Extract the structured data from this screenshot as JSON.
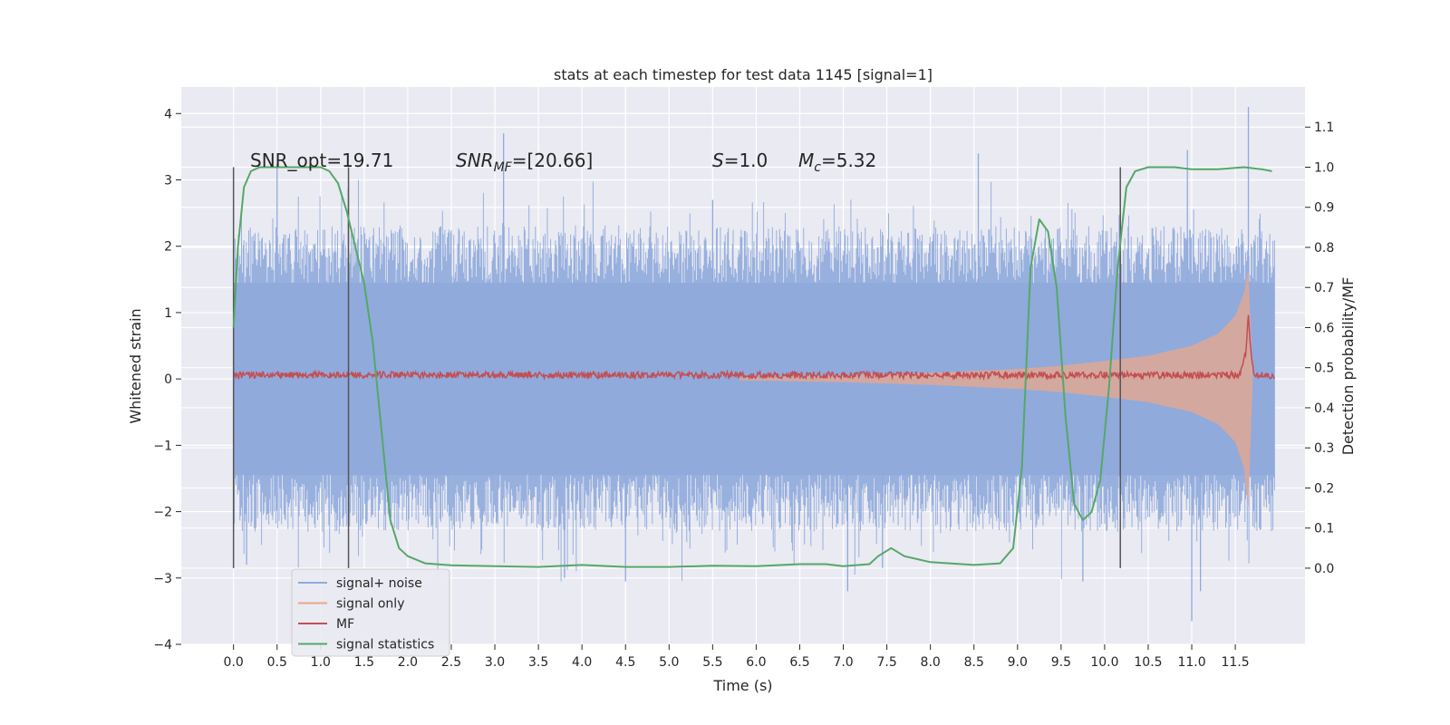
{
  "chart_data": {
    "type": "line",
    "title": "stats at each timestep for test data 1145 [signal=1]",
    "xlabel": "Time (s)",
    "ylabel": "Whitened strain",
    "ylabel_right": "Detection probability/MF",
    "xlim": [
      -0.6,
      12.3
    ],
    "ylim": [
      -4.0,
      4.4
    ],
    "ylim_right": [
      -0.19,
      1.2
    ],
    "x_ticks": [
      0.0,
      0.5,
      1.0,
      1.5,
      2.0,
      2.5,
      3.0,
      3.5,
      4.0,
      4.5,
      5.0,
      5.5,
      6.0,
      6.5,
      7.0,
      7.5,
      8.0,
      8.5,
      9.0,
      9.5,
      10.0,
      10.5,
      11.0,
      11.5
    ],
    "x_tick_labels": [
      "0.0",
      "0.5",
      "1.0",
      "1.5",
      "2.0",
      "2.5",
      "3.0",
      "3.5",
      "4.0",
      "4.5",
      "5.0",
      "5.5",
      "6.0",
      "6.5",
      "7.0",
      "7.5",
      "8.0",
      "8.5",
      "9.0",
      "9.5",
      "10.0",
      "10.5",
      "11.0",
      "11.5"
    ],
    "y_ticks": [
      -4,
      -3,
      -2,
      -1,
      0,
      1,
      2,
      3,
      4
    ],
    "y_tick_labels": [
      "−4",
      "−3",
      "−2",
      "−1",
      "0",
      "1",
      "2",
      "3",
      "4"
    ],
    "y_right_ticks": [
      0.0,
      0.1,
      0.2,
      0.3,
      0.4,
      0.5,
      0.6,
      0.7,
      0.8,
      0.9,
      1.0,
      1.1
    ],
    "y_right_tick_labels": [
      "0.0",
      "0.1",
      "0.2",
      "0.3",
      "0.4",
      "0.5",
      "0.6",
      "0.7",
      "0.8",
      "0.9",
      "1.0",
      "1.1"
    ],
    "grid": true,
    "legend_position": "bottom-left",
    "legend": [
      {
        "label": "signal+ noise",
        "color": "#8faadc"
      },
      {
        "label": "signal only",
        "color": "#eaa78b"
      },
      {
        "label": "MF",
        "color": "#c44e52"
      },
      {
        "label": "signal statistics",
        "color": "#55a868"
      }
    ],
    "annotations": {
      "snr_opt": "SNR_opt=19.71",
      "snr_mf_base": "SNR",
      "snr_mf_sub": "MF",
      "snr_mf_rest": "=[20.66]",
      "s_sym": "S",
      "s_val": "=1.0",
      "mc_base": "M",
      "mc_sub": "c",
      "mc_val": "=5.32"
    },
    "vertical_lines_x": [
      0.0,
      1.32,
      10.18
    ],
    "series": {
      "noise_envelope": {
        "x": [
          0.0,
          1.0,
          2.0,
          3.0,
          4.0,
          5.0,
          6.0,
          7.0,
          8.0,
          9.0,
          10.0,
          11.0,
          11.95
        ],
        "upper": [
          1.45,
          1.45,
          1.45,
          1.45,
          1.45,
          1.45,
          1.45,
          1.45,
          1.45,
          1.45,
          1.45,
          1.45,
          1.45
        ],
        "lower": [
          -1.45,
          -1.45,
          -1.45,
          -1.45,
          -1.45,
          -1.45,
          -1.45,
          -1.45,
          -1.45,
          -1.45,
          -1.45,
          -1.45,
          -1.45
        ]
      },
      "noise_spikes": {
        "x": [
          0.5,
          3.1,
          7.45,
          8.55,
          10.95,
          11.65,
          4.5,
          3.8,
          7.05,
          9.75,
          11.0,
          11.1,
          0.15,
          5.5
        ],
        "y": [
          3.25,
          3.7,
          -2.85,
          3.4,
          3.45,
          4.1,
          -3.05,
          -3.0,
          -3.2,
          -3.05,
          -3.65,
          -3.2,
          -2.8,
          2.7
        ]
      },
      "signal_only_envelope": {
        "x": [
          5.8,
          7.0,
          8.0,
          9.0,
          9.5,
          10.0,
          10.5,
          11.0,
          11.3,
          11.5,
          11.6,
          11.65,
          11.7
        ],
        "upper": [
          0.02,
          0.05,
          0.09,
          0.15,
          0.2,
          0.27,
          0.35,
          0.5,
          0.68,
          0.95,
          1.3,
          1.65,
          0.0
        ],
        "lower": [
          -0.02,
          -0.05,
          -0.09,
          -0.15,
          -0.2,
          -0.27,
          -0.35,
          -0.5,
          -0.68,
          -0.95,
          -1.35,
          -1.95,
          0.0
        ]
      },
      "mf": {
        "x": [
          0.0,
          11.55,
          11.62,
          11.65,
          11.68,
          11.72,
          11.95
        ],
        "y": [
          0.06,
          0.06,
          0.4,
          1.0,
          0.35,
          0.06,
          0.04
        ],
        "ripple": 0.05
      },
      "signal_statistics": {
        "x": [
          0.0,
          0.05,
          0.12,
          0.2,
          0.3,
          0.5,
          0.8,
          1.0,
          1.1,
          1.2,
          1.3,
          1.4,
          1.5,
          1.6,
          1.7,
          1.8,
          1.9,
          2.0,
          2.2,
          2.5,
          3.0,
          3.5,
          4.0,
          4.5,
          5.0,
          5.5,
          6.0,
          6.5,
          6.8,
          7.0,
          7.3,
          7.4,
          7.55,
          7.7,
          8.0,
          8.5,
          8.8,
          8.95,
          9.05,
          9.15,
          9.25,
          9.35,
          9.45,
          9.55,
          9.65,
          9.75,
          9.85,
          9.95,
          10.05,
          10.15,
          10.25,
          10.35,
          10.5,
          10.8,
          11.0,
          11.3,
          11.6,
          11.8,
          11.92
        ],
        "y": [
          0.6,
          0.8,
          0.95,
          0.99,
          1.0,
          1.0,
          1.0,
          1.0,
          0.99,
          0.96,
          0.89,
          0.8,
          0.71,
          0.56,
          0.34,
          0.12,
          0.05,
          0.03,
          0.012,
          0.007,
          0.005,
          0.003,
          0.008,
          0.003,
          0.003,
          0.006,
          0.005,
          0.01,
          0.01,
          0.005,
          0.01,
          0.03,
          0.05,
          0.03,
          0.015,
          0.008,
          0.012,
          0.05,
          0.25,
          0.75,
          0.87,
          0.84,
          0.7,
          0.38,
          0.16,
          0.12,
          0.14,
          0.22,
          0.45,
          0.75,
          0.95,
          0.99,
          1.0,
          1.0,
          0.995,
          0.995,
          1.0,
          0.995,
          0.99
        ]
      }
    }
  }
}
